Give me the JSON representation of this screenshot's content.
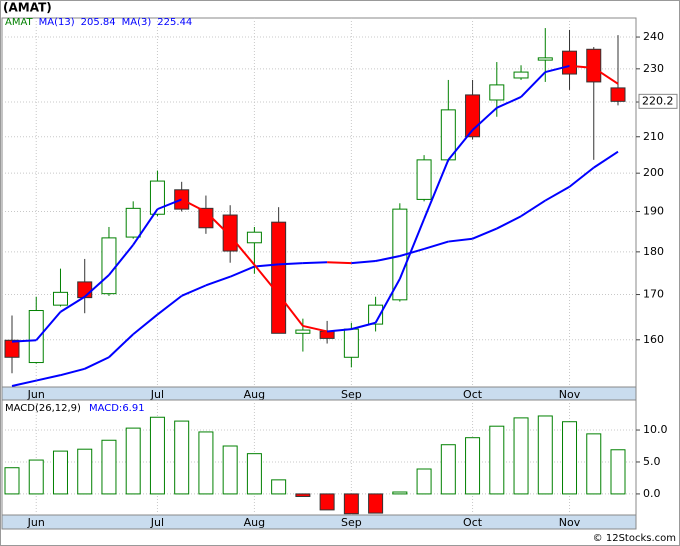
{
  "title": "(AMAT)",
  "footer": "© 12Stocks.com",
  "chart_data": [
    {
      "type": "candlestick",
      "symbol": "AMAT",
      "categories": [
        null,
        "Jun",
        null,
        null,
        null,
        null,
        "Jul",
        null,
        null,
        null,
        "Aug",
        null,
        null,
        null,
        "Sep",
        null,
        null,
        null,
        null,
        "Oct",
        null,
        null,
        null,
        "Nov",
        null,
        null
      ],
      "open": [
        159.9,
        155.2,
        167.6,
        172.9,
        170.2,
        183.6,
        189.3,
        195.6,
        190.8,
        189.1,
        182.2,
        187.3,
        161.4,
        161.8,
        156.3,
        163.4,
        168.8,
        193.1,
        203.6,
        222.1,
        220.6,
        227.2,
        232.7,
        235.5,
        236.1,
        224.2
      ],
      "high": [
        165.3,
        169.5,
        176.0,
        178.3,
        186.1,
        192.6,
        200.7,
        197.7,
        194.1,
        191.6,
        186.1,
        191.1,
        164.6,
        164.1,
        163.7,
        169.5,
        192.1,
        204.9,
        226.6,
        226.6,
        232.1,
        231.1,
        242.9,
        242.3,
        236.8,
        240.6
      ],
      "low": [
        153.0,
        155.0,
        167.3,
        165.8,
        169.7,
        183.2,
        188.8,
        190.0,
        184.4,
        177.4,
        174.8,
        161.4,
        157.5,
        159.2,
        154.2,
        161.8,
        168.4,
        192.6,
        203.1,
        209.2,
        215.7,
        226.6,
        226.0,
        223.6,
        203.6,
        219.0
      ],
      "close": [
        156.3,
        166.4,
        170.5,
        169.3,
        183.4,
        190.8,
        197.9,
        190.6,
        185.9,
        180.2,
        184.8,
        161.4,
        162.1,
        160.3,
        162.3,
        167.6,
        190.6,
        203.6,
        217.7,
        210.0,
        225.1,
        229.0,
        233.4,
        228.4,
        226.0,
        220.2
      ],
      "up_color": "#008000",
      "down_color": "#ff0000",
      "series": [
        {
          "name": "MA(13)",
          "color": "#0000ff",
          "down_color": "#ff0000",
          "values": [
            150.4,
            151.5,
            152.6,
            153.9,
            156.3,
            161.2,
            165.5,
            169.7,
            172.1,
            174.1,
            176.5,
            177.0,
            177.3,
            177.5,
            177.3,
            177.8,
            179.0,
            180.7,
            182.5,
            183.2,
            185.7,
            188.8,
            192.8,
            196.4,
            201.5,
            205.84
          ]
        },
        {
          "name": "MA(3)",
          "color": "#0000ff",
          "down_color": "#ff0000",
          "values": [
            159.6,
            159.9,
            166.1,
            169.5,
            174.5,
            181.7,
            190.6,
            193.1,
            189.9,
            183.9,
            176.9,
            170.0,
            163.0,
            161.8,
            162.3,
            163.7,
            173.6,
            188.1,
            203.6,
            211.9,
            218.3,
            221.5,
            229.0,
            230.9,
            230.3,
            225.44
          ]
        }
      ],
      "ylim": [
        150.2,
        246.2
      ],
      "yticks": [
        160,
        170,
        180,
        190,
        200,
        210,
        220,
        230,
        240
      ],
      "log_scale": true,
      "grid": true
    },
    {
      "type": "bar",
      "title": "MACD(26,12,9)",
      "legend_label": "MACD:",
      "categories": [
        null,
        "Jun",
        null,
        null,
        null,
        null,
        "Jul",
        null,
        null,
        null,
        "Aug",
        null,
        null,
        null,
        "Sep",
        null,
        null,
        null,
        null,
        "Oct",
        null,
        null,
        null,
        "Nov",
        null,
        null
      ],
      "values": [
        4.1,
        5.3,
        6.7,
        7.0,
        8.4,
        10.3,
        12.0,
        11.4,
        9.7,
        7.5,
        6.3,
        2.2,
        -0.4,
        -2.5,
        -3.1,
        -3.0,
        0.3,
        3.9,
        7.7,
        8.8,
        10.6,
        11.9,
        12.2,
        11.3,
        9.4,
        6.91
      ],
      "color": "#008000",
      "negative_color": "#ff0000",
      "ylim": [
        -3.3,
        14.7
      ],
      "yticks": [
        {
          "value": 0,
          "label": "0.0"
        },
        {
          "value": 5,
          "label": "5.0"
        },
        {
          "value": 10,
          "label": "10.0"
        }
      ],
      "grid": true
    }
  ]
}
